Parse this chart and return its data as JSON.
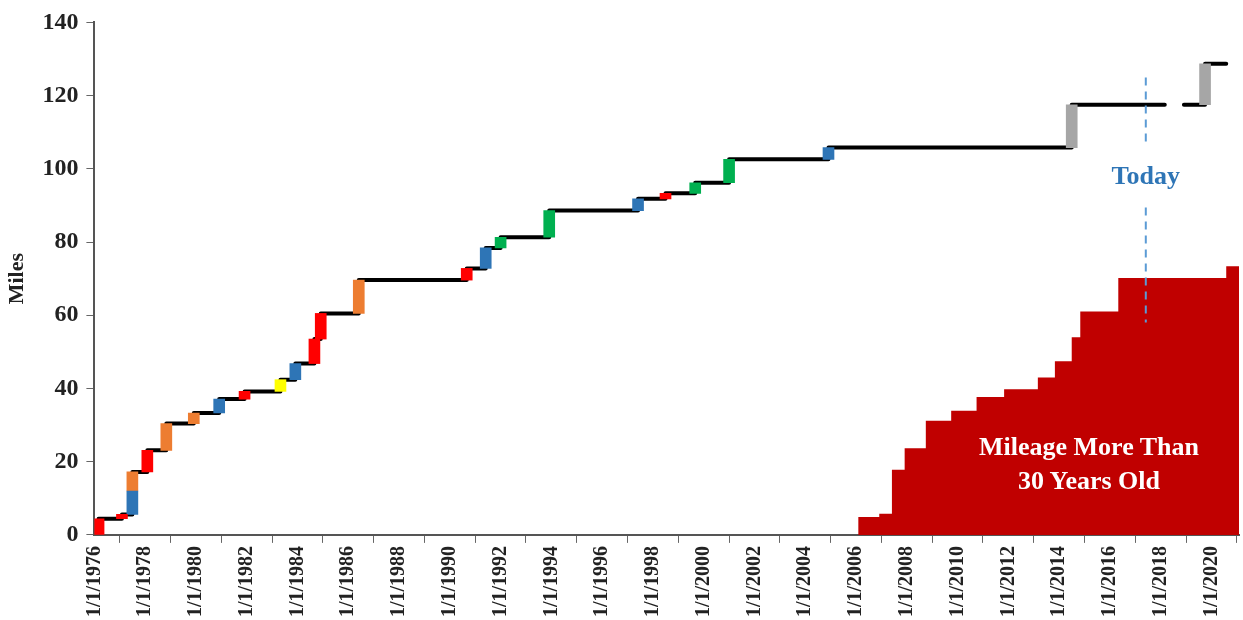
{
  "chart_data": {
    "type": "step",
    "ylabel": "Miles",
    "xlim": [
      "1976-01-01",
      "2021-02-01"
    ],
    "xticks": [
      {
        "value": "1976-01-01",
        "label": "1/1/1976"
      },
      {
        "value": "1978-01-01",
        "label": "1/1/1978"
      },
      {
        "value": "1980-01-01",
        "label": "1/1/1980"
      },
      {
        "value": "1982-01-01",
        "label": "1/1/1982"
      },
      {
        "value": "1984-01-01",
        "label": "1/1/1984"
      },
      {
        "value": "1986-01-01",
        "label": "1/1/1986"
      },
      {
        "value": "1988-01-01",
        "label": "1/1/1988"
      },
      {
        "value": "1990-01-01",
        "label": "1/1/1990"
      },
      {
        "value": "1992-01-01",
        "label": "1/1/1992"
      },
      {
        "value": "1994-01-01",
        "label": "1/1/1994"
      },
      {
        "value": "1996-01-01",
        "label": "1/1/1996"
      },
      {
        "value": "1998-01-01",
        "label": "1/1/1998"
      },
      {
        "value": "2000-01-01",
        "label": "1/1/2000"
      },
      {
        "value": "2002-01-01",
        "label": "1/1/2002"
      },
      {
        "value": "2004-01-01",
        "label": "1/1/2004"
      },
      {
        "value": "2006-01-01",
        "label": "1/1/2006"
      },
      {
        "value": "2008-01-01",
        "label": "1/1/2008"
      },
      {
        "value": "2010-01-01",
        "label": "1/1/2010"
      },
      {
        "value": "2012-01-01",
        "label": "1/1/2012"
      },
      {
        "value": "2014-01-01",
        "label": "1/1/2014"
      },
      {
        "value": "2016-01-01",
        "label": "1/1/2016"
      },
      {
        "value": "2018-01-01",
        "label": "1/1/2018"
      },
      {
        "value": "2020-01-01",
        "label": "1/1/2020"
      }
    ],
    "ylim": [
      0,
      140
    ],
    "yticks": [
      0,
      20,
      40,
      60,
      80,
      100,
      120,
      140
    ],
    "grid": false,
    "legend": false,
    "series": [
      {
        "type": "area",
        "color": "#c00000",
        "x": [
          "2006-02",
          "2006-12",
          "2007-06",
          "2007-12",
          "2008-10",
          "2009-10",
          "2010-10",
          "2011-11",
          "2013-03",
          "2013-11",
          "2014-07",
          "2014-11",
          "2016-05",
          "2020-08",
          "2021-02"
        ],
        "values": [
          4.9,
          5.8,
          17.8,
          23.7,
          31.2,
          33.9,
          37.7,
          39.8,
          43,
          47.4,
          54,
          61,
          70.2,
          73.4,
          73.4
        ]
      },
      {
        "type": "bar",
        "color": "#ff0000",
        "x": [
          "1976-03",
          "1977-02",
          "1978-02",
          "1981-12",
          "1984-09",
          "1984-12",
          "1990-09",
          "1998-07"
        ],
        "base": [
          0,
          4.4,
          17.2,
          37.1,
          46.8,
          53.5,
          69.6,
          91.8
        ],
        "values": [
          4.4,
          1.2,
          5.9,
          2.1,
          6.7,
          7,
          3.2,
          1.5
        ]
      },
      {
        "type": "bar",
        "color": "#2e75b6",
        "x": [
          "1977-07",
          "1980-12",
          "1983-12",
          "1991-06",
          "1997-06",
          "2004-12"
        ],
        "base": [
          5.6,
          33.3,
          42.4,
          72.8,
          88.6,
          102.6
        ],
        "values": [
          6.4,
          3.8,
          4.4,
          5.6,
          3.2,
          3.2
        ]
      },
      {
        "type": "bar",
        "color": "#ed7d31",
        "x": [
          "1977-07",
          "1978-11",
          "1979-12",
          "1986-06"
        ],
        "base": [
          12,
          23.1,
          30.4,
          60.5
        ],
        "values": [
          5.2,
          7.3,
          2.9,
          9.1
        ]
      },
      {
        "type": "bar",
        "color": "#ffff00",
        "x": [
          "1983-05"
        ],
        "base": [
          39.2
        ],
        "values": [
          3.2
        ]
      },
      {
        "type": "bar",
        "color": "#00b050",
        "x": [
          "1992-01",
          "1993-12",
          "1999-09",
          "2001-01"
        ],
        "base": [
          78.4,
          81.3,
          93.3,
          96.2
        ],
        "values": [
          2.9,
          7.3,
          2.9,
          6.4
        ]
      },
      {
        "type": "bar",
        "color": "#a6a6a6",
        "x": [
          "2014-07",
          "2019-10"
        ],
        "base": [
          105.8,
          117.5
        ],
        "values": [
          11.7,
          11.2
        ]
      },
      {
        "color": "#000000",
        "x": [
          "1976-03",
          "1977-02",
          "1977-07",
          "1978-02",
          "1978-11",
          "1979-12",
          "1980-12",
          "1981-12",
          "1983-05",
          "1983-12",
          "1984-09",
          "1984-12",
          "1986-06",
          "1990-09",
          "1991-06",
          "1992-01",
          "1993-12",
          "1997-06",
          "1998-07",
          "1999-09",
          "2001-01",
          "2004-12",
          "2014-07",
          "2018-03",
          "2018-07",
          "2018-12",
          "2019-10",
          "2020-08"
        ],
        "values": [
          4.4,
          5.6,
          17.2,
          23.1,
          30.4,
          33.3,
          37.1,
          39.2,
          42.4,
          46.8,
          53.5,
          60.5,
          69.6,
          72.8,
          78.4,
          81.3,
          88.6,
          91.8,
          93.3,
          96.2,
          102.6,
          105.8,
          117.5,
          117.5,
          null,
          117.5,
          128.7,
          128.7
        ]
      }
    ],
    "ref_lines": [
      {
        "axis": "x",
        "value": "2017-06",
        "label": "Today",
        "color": "#5b9bd5",
        "line_style": "dashed"
      }
    ],
    "annotations": [
      "Mileage More Than 30 Years Old"
    ]
  }
}
